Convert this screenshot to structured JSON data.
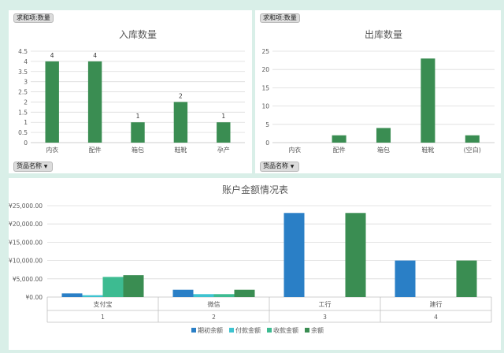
{
  "colors": {
    "green": "#3a8d52",
    "blue": "#2a7fc6",
    "cyan": "#3ec3d0",
    "teal": "#3dbb91",
    "grid": "#dcdcdc",
    "axis": "#bfbfbf",
    "text": "#595959"
  },
  "panels": {
    "in_tag": "求和项:数量",
    "out_tag": "求和项:数量",
    "in_filter": "货品名称",
    "out_filter": "货品名称"
  },
  "chart_data": [
    {
      "type": "bar",
      "title": "入库数量",
      "categories": [
        "内衣",
        "配件",
        "箱包",
        "鞋靴",
        "孕产"
      ],
      "values": [
        4,
        4,
        1,
        2,
        1
      ],
      "data_labels": [
        "4",
        "4",
        "1",
        "2",
        "1"
      ],
      "ylim": [
        0,
        4.5
      ],
      "yticks": [
        "0",
        "0.5",
        "1",
        "1.5",
        "2",
        "2.5",
        "3",
        "3.5",
        "4",
        "4.5"
      ],
      "grid": true,
      "color": "#3a8d52"
    },
    {
      "type": "bar",
      "title": "出库数量",
      "categories": [
        "内衣",
        "配件",
        "箱包",
        "鞋靴",
        "(空白)"
      ],
      "values": [
        0,
        2,
        4,
        23,
        2
      ],
      "ylim": [
        0,
        25
      ],
      "yticks": [
        "0",
        "5",
        "10",
        "15",
        "20",
        "25"
      ],
      "grid": true,
      "color": "#3a8d52"
    },
    {
      "type": "bar",
      "title": "账户金额情况表",
      "categories": [
        "支付宝",
        "微信",
        "工行",
        "建行"
      ],
      "subcategories": [
        "1",
        "2",
        "3",
        "4"
      ],
      "series": [
        {
          "name": "期初余额",
          "values": [
            1000,
            2000,
            23000,
            10000
          ],
          "color": "#2a7fc6"
        },
        {
          "name": "付款金额",
          "values": [
            500,
            800,
            0,
            0
          ],
          "color": "#3ec3d0"
        },
        {
          "name": "收款金额",
          "values": [
            5500,
            800,
            0,
            0
          ],
          "color": "#3dbb91"
        },
        {
          "name": "余额",
          "values": [
            6000,
            2000,
            23000,
            10000
          ],
          "color": "#3a8d52"
        }
      ],
      "ylim": [
        0,
        25000
      ],
      "yticks": [
        "¥0.00",
        "¥5,000.00",
        "¥10,000.00",
        "¥15,000.00",
        "¥20,000.00",
        "¥25,000.00"
      ],
      "grid": true,
      "legend": "bottom"
    }
  ]
}
